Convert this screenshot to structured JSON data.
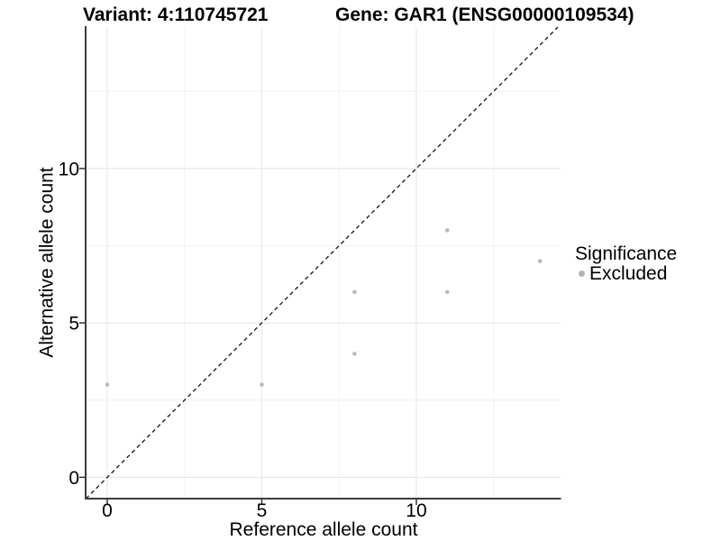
{
  "chart_data": {
    "type": "scatter",
    "title_left": "Variant: 4:110745721",
    "title_right": "Gene: GAR1 (ENSG00000109534)",
    "xlabel": "Reference allele count",
    "ylabel": "Alternative allele count",
    "xlim": [
      -0.7,
      14.68
    ],
    "ylim": [
      -0.69,
      14.58
    ],
    "x_major_ticks": [
      0,
      5,
      10
    ],
    "x_minor_ticks": [
      2.5,
      7.5,
      12.5
    ],
    "y_major_ticks": [
      0,
      5,
      10
    ],
    "y_minor_ticks": [
      2.5,
      7.5,
      12.5
    ],
    "grid": "major+minor",
    "identity_line": {
      "shown": true,
      "style": "dashed",
      "equation": "y = x"
    },
    "series": [
      {
        "name": "Excluded",
        "color": "#b9b9b9",
        "points": [
          [
            0,
            3
          ],
          [
            5,
            3
          ],
          [
            8,
            4
          ],
          [
            8,
            6
          ],
          [
            11,
            6
          ],
          [
            11,
            8
          ],
          [
            14,
            7
          ]
        ]
      }
    ],
    "legend": {
      "position": "right",
      "title": "Significance",
      "entries": [
        {
          "label": "Excluded",
          "color": "#b3b3b3"
        }
      ]
    },
    "colors": {
      "background": "#ffffff",
      "grid_major": "#e9e9e9",
      "grid_minor": "#f2f2f2",
      "axis_line": "#3c3c3c",
      "tick_mark": "#333333",
      "identity_line": "#222222",
      "point": "#b9b9b9",
      "text": "#000000"
    }
  }
}
